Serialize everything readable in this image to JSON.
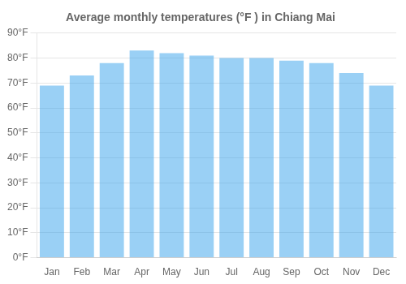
{
  "chart_data": {
    "type": "bar",
    "title": "Average monthly temperatures (°F ) in Chiang Mai",
    "categories": [
      "Jan",
      "Feb",
      "Mar",
      "Apr",
      "May",
      "Jun",
      "Jul",
      "Aug",
      "Sep",
      "Oct",
      "Nov",
      "Dec"
    ],
    "values": [
      69,
      73,
      78,
      83,
      82,
      81,
      80,
      80,
      79,
      78,
      74,
      69
    ],
    "ylim": [
      0,
      90
    ],
    "yticks": [
      {
        "value": 0,
        "label": "0°F"
      },
      {
        "value": 10,
        "label": "10°F"
      },
      {
        "value": 20,
        "label": "20°F"
      },
      {
        "value": 30,
        "label": "30°F"
      },
      {
        "value": 40,
        "label": "40°F"
      },
      {
        "value": 50,
        "label": "50°F"
      },
      {
        "value": 60,
        "label": "60°F"
      },
      {
        "value": 70,
        "label": "70°F"
      },
      {
        "value": 80,
        "label": "80°F"
      },
      {
        "value": 90,
        "label": "90°F"
      }
    ],
    "grid": true
  }
}
